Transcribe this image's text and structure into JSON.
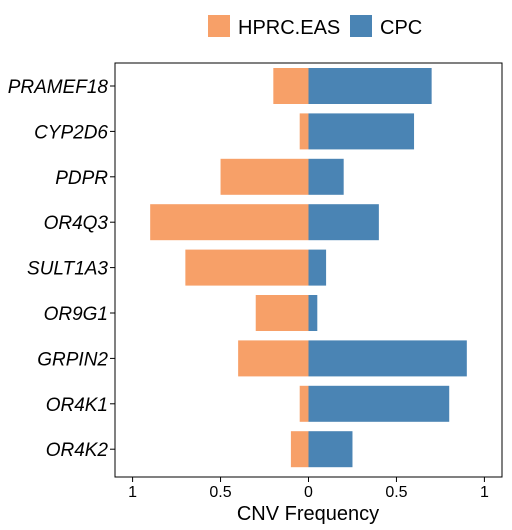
{
  "chart_data": {
    "type": "bar",
    "orientation": "horizontal-diverging",
    "categories": [
      "PRAMEF18",
      "CYP2D6",
      "PDPR",
      "OR4Q3",
      "SULT1A3",
      "OR9G1",
      "GRPIN2",
      "OR4K1",
      "OR4K2"
    ],
    "series": [
      {
        "name": "HPRC.EAS",
        "color": "#F7A068",
        "direction": "left",
        "values": [
          0.2,
          0.05,
          0.5,
          0.9,
          0.7,
          0.3,
          0.4,
          0.05,
          0.1
        ]
      },
      {
        "name": "CPC",
        "color": "#4A84B4",
        "direction": "right",
        "values": [
          0.7,
          0.6,
          0.2,
          0.4,
          0.1,
          0.05,
          0.9,
          0.8,
          0.25
        ]
      }
    ],
    "xlabel": "CNV Frequency",
    "ylabel": "",
    "xlim": [
      -1.1,
      1.1
    ],
    "xticks": [
      -1,
      -0.5,
      0,
      0.5,
      1
    ],
    "xtick_labels": [
      "1",
      "0.5",
      "0",
      "0.5",
      "1"
    ],
    "legend_position": "top",
    "grid": false
  }
}
